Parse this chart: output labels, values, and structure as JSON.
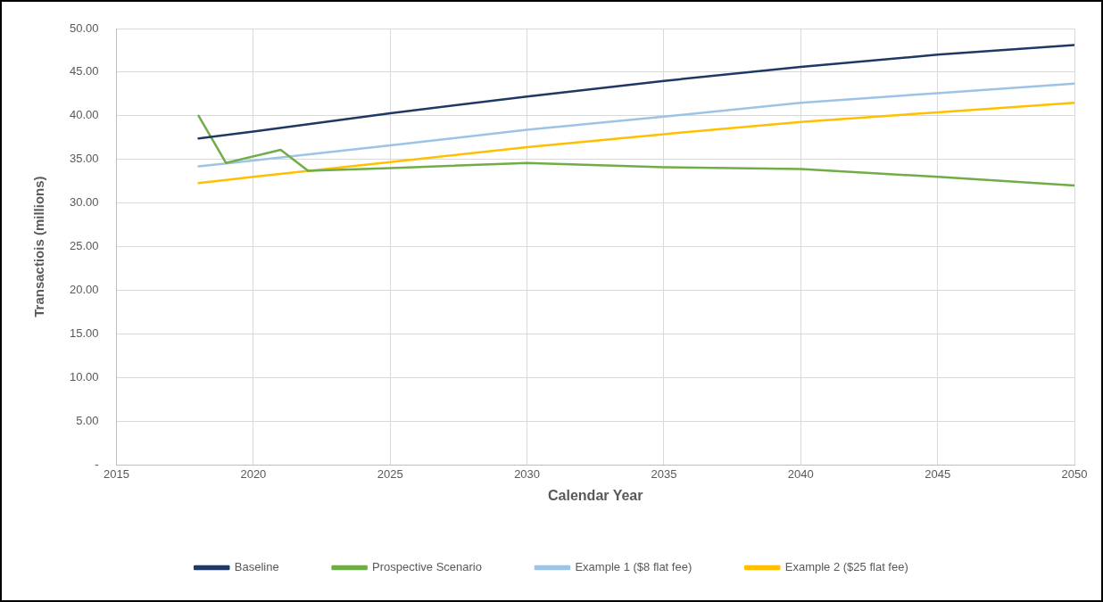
{
  "chart_data": {
    "type": "line",
    "xlabel": "Calendar Year",
    "ylabel": "Transactiois (millions)",
    "xlim": [
      2015,
      2050
    ],
    "xticks": [
      2015,
      2020,
      2025,
      2030,
      2035,
      2040,
      2045,
      2050
    ],
    "ylim": [
      0,
      50
    ],
    "yticks": [
      {
        "value": 0,
        "label": "-"
      },
      {
        "value": 5,
        "label": "5.00"
      },
      {
        "value": 10,
        "label": "10.00"
      },
      {
        "value": 15,
        "label": "15.00"
      },
      {
        "value": 20,
        "label": "20.00"
      },
      {
        "value": 25,
        "label": "25.00"
      },
      {
        "value": 30,
        "label": "30.00"
      },
      {
        "value": 35,
        "label": "35.00"
      },
      {
        "value": 40,
        "label": "40.00"
      },
      {
        "value": 45,
        "label": "45.00"
      },
      {
        "value": 50,
        "label": "50.00"
      }
    ],
    "grid": true,
    "legend": "bottom",
    "marker": "none",
    "line_style": "solid",
    "series": [
      {
        "name": "Baseline",
        "color": "#203864",
        "x": [
          2018,
          2020,
          2025,
          2030,
          2035,
          2040,
          2045,
          2050
        ],
        "values": [
          37.4,
          38.2,
          40.3,
          42.2,
          44.0,
          45.6,
          47.0,
          48.1
        ]
      },
      {
        "name": "Prospective Scenario",
        "color": "#70ad47",
        "x": [
          2018,
          2019,
          2021,
          2022,
          2025,
          2030,
          2035,
          2040,
          2045,
          2050
        ],
        "values": [
          40.0,
          34.6,
          36.1,
          33.7,
          34.0,
          34.6,
          34.1,
          33.9,
          33.0,
          32.0
        ]
      },
      {
        "name": "Example 1 ($8 flat fee)",
        "color": "#9dc3e6",
        "x": [
          2018,
          2025,
          2030,
          2035,
          2040,
          2045,
          2050
        ],
        "values": [
          34.2,
          36.6,
          38.4,
          39.9,
          41.5,
          42.6,
          43.7
        ]
      },
      {
        "name": "Example 2 ($25 flat fee)",
        "color": "#ffc000",
        "x": [
          2018,
          2020,
          2025,
          2030,
          2035,
          2040,
          2045,
          2050
        ],
        "values": [
          32.3,
          33.0,
          34.7,
          36.4,
          37.9,
          39.3,
          40.4,
          41.5
        ]
      }
    ]
  }
}
